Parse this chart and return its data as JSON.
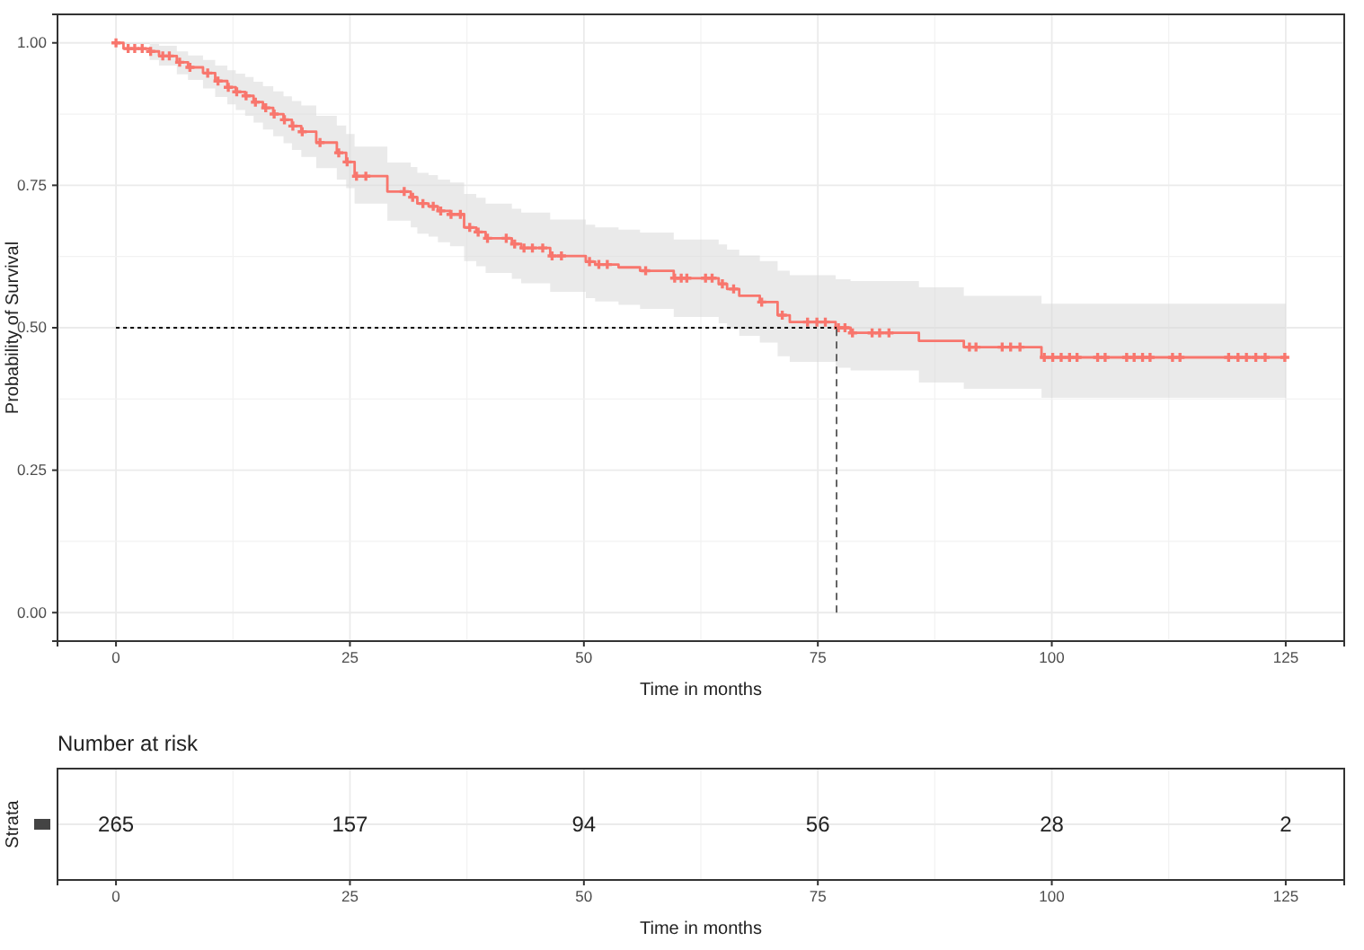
{
  "chart_data": [
    {
      "type": "step",
      "xlabel": "Time in months",
      "ylabel": "Probability of Survival",
      "xlim": [
        -6.25,
        131.25
      ],
      "xticks": [
        0,
        25,
        50,
        75,
        100,
        125
      ],
      "ylim": [
        -0.05,
        1.05
      ],
      "yticks": [
        {
          "value": 0,
          "label": "0.00"
        },
        {
          "value": 0.25,
          "label": "0.25"
        },
        {
          "value": 0.5,
          "label": "0.50"
        },
        {
          "value": 0.75,
          "label": "0.75"
        },
        {
          "value": 1,
          "label": "1.00"
        }
      ],
      "grid": true,
      "ref_lines": [
        {
          "axis": "y",
          "value": 0.5,
          "line_style": "dotted",
          "color": "#000000"
        },
        {
          "axis": "x",
          "value": 77,
          "line_style": "dashed",
          "color": "#555555"
        }
      ],
      "series": [
        {
          "type": "step",
          "color": "#f8766d",
          "line_style": "solid",
          "marker": "none",
          "x": [
            0,
            0.8,
            3.6,
            4.6,
            6.5,
            7.7,
            9.3,
            10.6,
            11.9,
            12.8,
            13.8,
            14.7,
            15.7,
            16.8,
            17.9,
            18.8,
            19.8,
            21.4,
            23.6,
            24.6,
            25.5,
            29,
            31.5,
            32.2,
            33.4,
            34.4,
            35.7,
            37.2,
            38.5,
            39.5,
            42.3,
            43.3,
            46.4,
            50.2,
            51.2,
            53.7,
            56,
            59.6,
            64.4,
            65.3,
            66.6,
            68.8,
            70.7,
            72,
            76.9,
            78.5,
            85.8,
            90.6,
            98.9,
            125
          ],
          "values": [
            1,
            0.99,
            0.985,
            0.977,
            0.966,
            0.957,
            0.947,
            0.933,
            0.922,
            0.914,
            0.907,
            0.896,
            0.886,
            0.875,
            0.865,
            0.854,
            0.844,
            0.825,
            0.807,
            0.791,
            0.766,
            0.739,
            0.729,
            0.718,
            0.713,
            0.705,
            0.699,
            0.676,
            0.668,
            0.657,
            0.647,
            0.64,
            0.626,
            0.616,
            0.611,
            0.606,
            0.6,
            0.587,
            0.577,
            0.568,
            0.556,
            0.545,
            0.522,
            0.51,
            0.5,
            0.491,
            0.477,
            0.466,
            0.448,
            0.448
          ],
          "upper": [
            1,
            1,
            0.998,
            0.995,
            0.985,
            0.978,
            0.97,
            0.96,
            0.952,
            0.946,
            0.94,
            0.932,
            0.924,
            0.915,
            0.906,
            0.898,
            0.89,
            0.872,
            0.855,
            0.84,
            0.818,
            0.79,
            0.782,
            0.772,
            0.768,
            0.76,
            0.755,
            0.735,
            0.728,
            0.718,
            0.709,
            0.702,
            0.69,
            0.681,
            0.676,
            0.672,
            0.667,
            0.655,
            0.646,
            0.637,
            0.627,
            0.617,
            0.6,
            0.592,
            0.585,
            0.582,
            0.571,
            0.556,
            0.542,
            0.542
          ],
          "lower": [
            1,
            0.998,
            0.97,
            0.96,
            0.945,
            0.935,
            0.92,
            0.905,
            0.892,
            0.882,
            0.872,
            0.86,
            0.848,
            0.836,
            0.824,
            0.812,
            0.8,
            0.78,
            0.76,
            0.745,
            0.718,
            0.688,
            0.676,
            0.665,
            0.66,
            0.65,
            0.643,
            0.617,
            0.608,
            0.596,
            0.586,
            0.578,
            0.563,
            0.552,
            0.546,
            0.54,
            0.533,
            0.519,
            0.508,
            0.499,
            0.486,
            0.474,
            0.45,
            0.44,
            0.43,
            0.425,
            0.404,
            0.393,
            0.377,
            0.377
          ]
        },
        {
          "type": "scatter",
          "color": "#f8766d",
          "marker": "cross",
          "x": [
            0,
            1.3,
            2,
            2.8,
            3.7,
            5,
            5.7,
            6.8,
            7.9,
            9.8,
            10.9,
            12,
            12.9,
            13.9,
            14.9,
            16,
            16.9,
            18,
            18.9,
            19.9,
            21.8,
            23.8,
            24.7,
            25.7,
            26.7,
            30.8,
            31.7,
            32.8,
            33.9,
            34.7,
            35.8,
            36.8,
            37.8,
            38.7,
            39.7,
            41.7,
            42.6,
            43.6,
            44.5,
            45.6,
            46.6,
            47.6,
            50.6,
            51.6,
            52.5,
            56.6,
            59.7,
            60.4,
            61,
            63,
            63.7,
            64.8,
            66,
            69,
            71.2,
            73.9,
            74.9,
            75.8,
            77.2,
            77.9,
            78.7,
            80.8,
            81.6,
            82.6,
            91.2,
            91.9,
            94.7,
            95.6,
            96.6,
            99.2,
            100.1,
            101,
            101.9,
            102.7,
            104.9,
            105.7,
            108,
            108.8,
            109.7,
            110.5,
            112.9,
            113.7,
            118.9,
            119.9,
            120.8,
            121.8,
            122.8,
            124.9
          ],
          "values": [
            1,
            0.99,
            0.99,
            0.99,
            0.985,
            0.977,
            0.977,
            0.966,
            0.957,
            0.947,
            0.933,
            0.922,
            0.914,
            0.907,
            0.896,
            0.886,
            0.875,
            0.865,
            0.854,
            0.844,
            0.825,
            0.807,
            0.791,
            0.766,
            0.766,
            0.739,
            0.729,
            0.718,
            0.713,
            0.705,
            0.699,
            0.699,
            0.676,
            0.668,
            0.657,
            0.657,
            0.647,
            0.64,
            0.64,
            0.64,
            0.626,
            0.626,
            0.616,
            0.611,
            0.611,
            0.6,
            0.587,
            0.587,
            0.587,
            0.587,
            0.587,
            0.577,
            0.568,
            0.545,
            0.522,
            0.51,
            0.51,
            0.51,
            0.5,
            0.5,
            0.491,
            0.491,
            0.491,
            0.491,
            0.466,
            0.466,
            0.466,
            0.466,
            0.466,
            0.448,
            0.448,
            0.448,
            0.448,
            0.448,
            0.448,
            0.448,
            0.448,
            0.448,
            0.448,
            0.448,
            0.448,
            0.448,
            0.448,
            0.448,
            0.448,
            0.448,
            0.448,
            0.448
          ]
        }
      ]
    },
    {
      "type": "heatmap",
      "title": "Number at risk",
      "xlabel": "Time in months",
      "ylabel": "Strata",
      "grid": true,
      "data_labels": true,
      "categories": [
        "0",
        "25",
        "50",
        "75",
        "100",
        "125"
      ],
      "y_categories": [
        null
      ],
      "cells": [
        [
          265,
          157,
          94,
          56,
          28,
          2
        ]
      ]
    }
  ]
}
